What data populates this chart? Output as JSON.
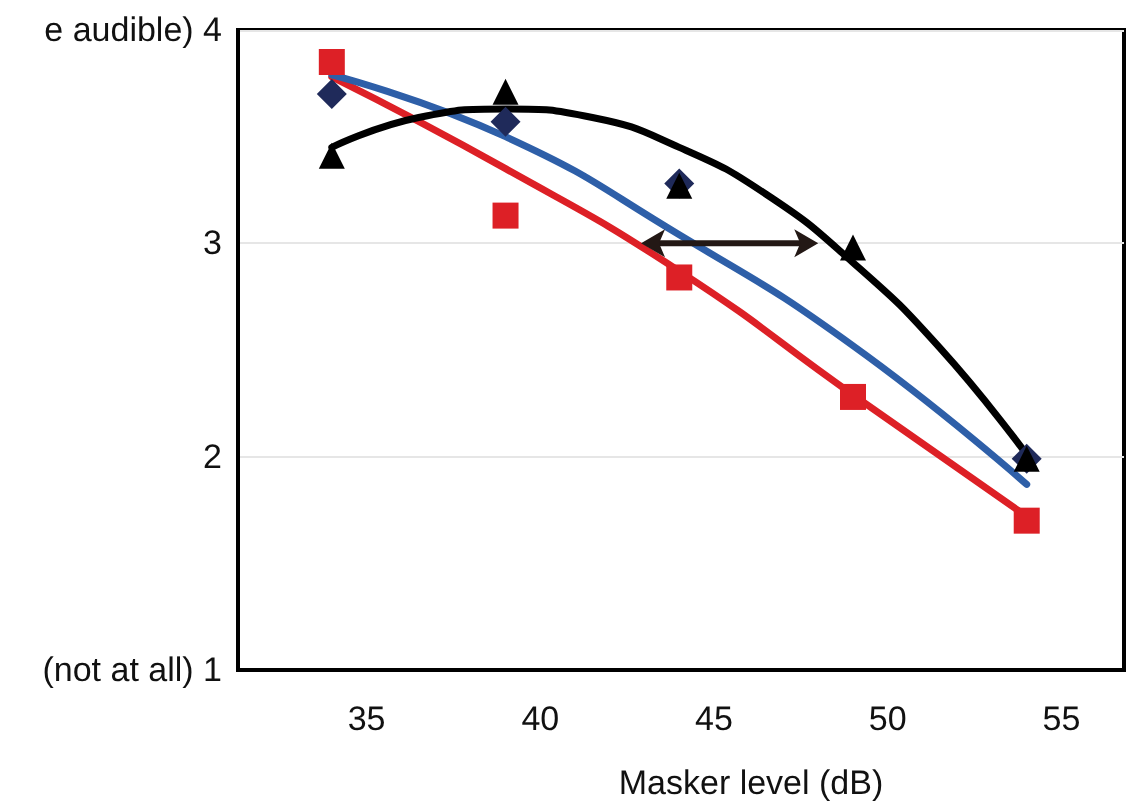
{
  "chart_data": {
    "type": "scatter",
    "xlabel": "Masker level (dB)",
    "xlim": [
      31.3,
      56.8
    ],
    "xticks": [
      35,
      40,
      45,
      50,
      55
    ],
    "ylim": [
      1,
      4
    ],
    "yticks": [
      {
        "value": 1,
        "label": "(not at all) 1"
      },
      2,
      3,
      {
        "value": 4,
        "label": "e audible) 4"
      }
    ],
    "grid": "y",
    "series": [
      {
        "type": "line",
        "color": "#dd2026",
        "line_style": "solid",
        "x": [
          34,
          39,
          44,
          49,
          54
        ],
        "values": [
          3.78,
          3.35,
          2.87,
          2.29,
          1.72
        ]
      },
      {
        "type": "line",
        "color": "#2e5fa8",
        "line_style": "solid",
        "x": [
          34,
          39,
          44,
          49,
          54
        ],
        "values": [
          3.79,
          3.5,
          3.04,
          2.52,
          1.87
        ]
      },
      {
        "type": "line",
        "color": "#000000",
        "line_style": "solid",
        "x": [
          34,
          36.5,
          39,
          41.5,
          44,
          46.5,
          49,
          51.5,
          54
        ],
        "values": [
          3.45,
          3.59,
          3.63,
          3.59,
          3.45,
          3.23,
          2.91,
          2.51,
          2.01
        ]
      },
      {
        "color": "#dd2026",
        "marker": "square",
        "x": [
          34,
          39,
          44,
          49,
          54
        ],
        "values": [
          3.85,
          3.13,
          2.84,
          2.28,
          1.7
        ]
      },
      {
        "color": "#1f2a5a",
        "marker": "diamond",
        "x": [
          34,
          39,
          44,
          49,
          54
        ],
        "values": [
          3.7,
          3.57,
          3.28,
          null,
          1.99
        ]
      },
      {
        "color": "#000000",
        "marker": "triangle",
        "x": [
          34,
          39,
          44,
          49,
          54
        ],
        "values": [
          3.41,
          3.71,
          3.27,
          2.98,
          1.99
        ]
      }
    ]
  }
}
